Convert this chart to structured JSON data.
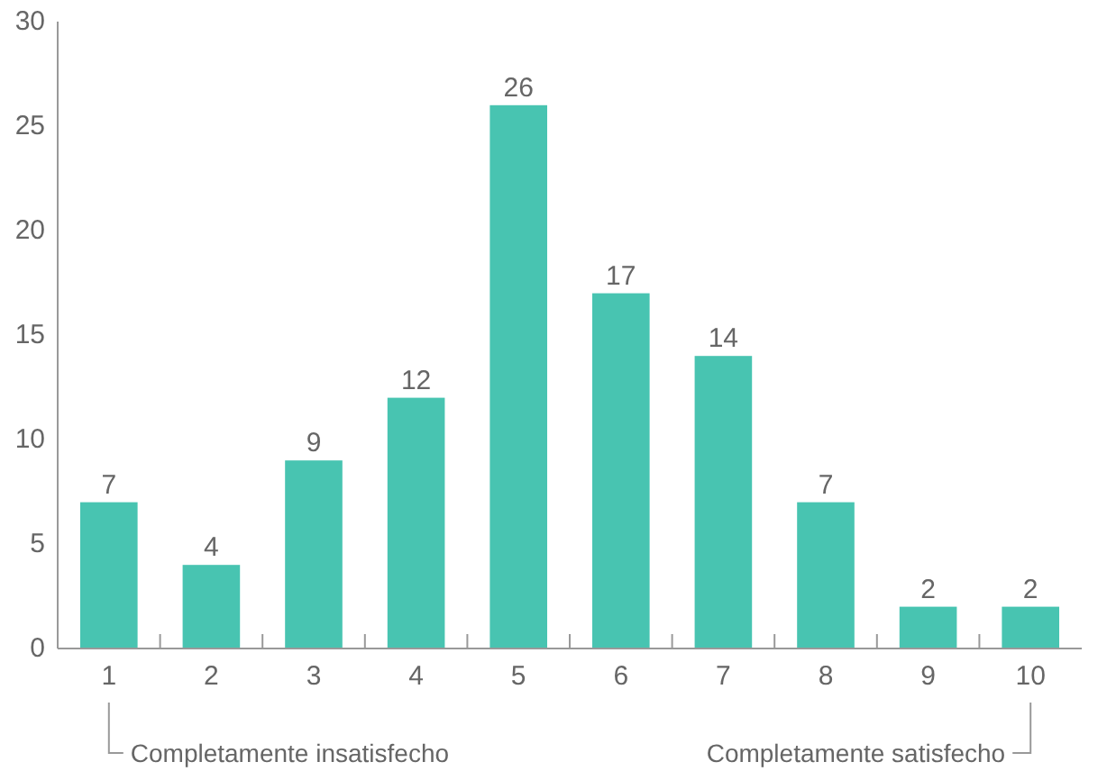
{
  "chart_data": {
    "type": "bar",
    "categories": [
      "1",
      "2",
      "3",
      "4",
      "5",
      "6",
      "7",
      "8",
      "9",
      "10"
    ],
    "values": [
      7,
      4,
      9,
      12,
      26,
      17,
      14,
      7,
      2,
      2
    ],
    "color": "#48c4b1",
    "ylim": [
      0,
      30
    ],
    "yticks": [
      0,
      5,
      10,
      15,
      20,
      25,
      30
    ],
    "grid": false,
    "data_labels": true,
    "annotations": [
      "Completamente insatisfecho",
      "Completamente satisfecho"
    ]
  }
}
